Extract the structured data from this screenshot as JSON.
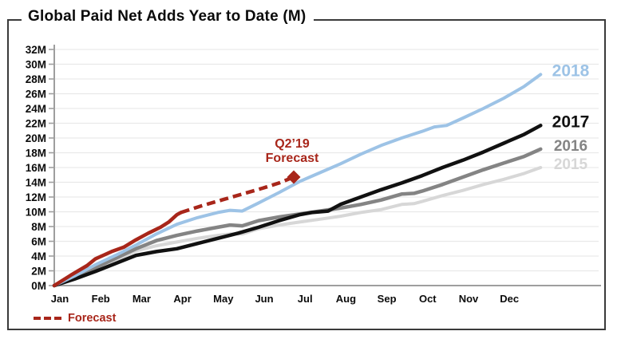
{
  "title": "Global Paid Net Adds Year to Date (M)",
  "annotation": {
    "line1": "Q2’19",
    "line2": "Forecast"
  },
  "legend": {
    "label": "Forecast"
  },
  "colors": {
    "forecast_red": "#A8261A",
    "blue_2018": "#9DC3E6",
    "black_2017": "#111111",
    "gray_2016": "#848484",
    "lightgray_2015": "#D7D7D7",
    "gridline": "#E9E9E9",
    "axis": "#9E9E9E",
    "frame_border": "#3A3A3A"
  },
  "chart_data": {
    "type": "line",
    "title": "Global Paid Net Adds Year to Date (M)",
    "xlabel": "",
    "ylabel": "",
    "x_axis": {
      "months": [
        "Jan",
        "Feb",
        "Mar",
        "Apr",
        "May",
        "Jun",
        "Jul",
        "Aug",
        "Sep",
        "Oct",
        "Nov",
        "Dec"
      ]
    },
    "y_axis": {
      "min": 0,
      "max": 32,
      "step": 2,
      "ticks": [
        "0M",
        "2M",
        "4M",
        "6M",
        "8M",
        "10M",
        "12M",
        "14M",
        "16M",
        "18M",
        "20M",
        "22M",
        "24M",
        "26M",
        "28M",
        "30M",
        "32M"
      ]
    },
    "grid": true,
    "legend_position": "bottom-left",
    "series": [
      {
        "name": "2015",
        "label": "2015",
        "color": "#D7D7D7",
        "style": "solid",
        "width": 4,
        "label_size": 19,
        "points": [
          [
            0,
            0
          ],
          [
            0.5,
            1.0
          ],
          [
            1,
            2.2
          ],
          [
            1.5,
            3.4
          ],
          [
            2,
            4.7
          ],
          [
            2.5,
            5.4
          ],
          [
            3,
            5.9
          ],
          [
            3.5,
            6.4
          ],
          [
            4,
            6.8
          ],
          [
            4.3,
            7.0
          ],
          [
            4.6,
            7.0
          ],
          [
            5,
            7.7
          ],
          [
            5.5,
            8.2
          ],
          [
            6,
            8.6
          ],
          [
            6.5,
            9.0
          ],
          [
            7,
            9.4
          ],
          [
            7.5,
            9.9
          ],
          [
            8,
            10.3
          ],
          [
            8.5,
            11.0
          ],
          [
            8.8,
            11.1
          ],
          [
            9,
            11.4
          ],
          [
            9.5,
            12.2
          ],
          [
            10,
            12.9
          ],
          [
            10.5,
            13.7
          ],
          [
            11,
            14.4
          ],
          [
            11.5,
            15.2
          ],
          [
            11.9,
            16.0
          ]
        ]
      },
      {
        "name": "2016",
        "label": "2016",
        "color": "#848484",
        "style": "solid",
        "width": 4.5,
        "label_size": 19,
        "points": [
          [
            0,
            0
          ],
          [
            0.5,
            1.1
          ],
          [
            1,
            2.4
          ],
          [
            1.5,
            3.7
          ],
          [
            2,
            5.0
          ],
          [
            2.5,
            6.1
          ],
          [
            3,
            6.8
          ],
          [
            3.5,
            7.4
          ],
          [
            4,
            7.9
          ],
          [
            4.3,
            8.2
          ],
          [
            4.6,
            8.1
          ],
          [
            5,
            8.8
          ],
          [
            5.5,
            9.3
          ],
          [
            6,
            9.7
          ],
          [
            6.5,
            10.1
          ],
          [
            7,
            10.5
          ],
          [
            7.5,
            11.0
          ],
          [
            8,
            11.6
          ],
          [
            8.5,
            12.4
          ],
          [
            8.8,
            12.5
          ],
          [
            9,
            12.8
          ],
          [
            9.5,
            13.7
          ],
          [
            10,
            14.7
          ],
          [
            10.5,
            15.7
          ],
          [
            11,
            16.6
          ],
          [
            11.5,
            17.5
          ],
          [
            11.9,
            18.5
          ]
        ]
      },
      {
        "name": "2017",
        "label": "2017",
        "color": "#111111",
        "style": "solid",
        "width": 4.5,
        "label_size": 21,
        "points": [
          [
            0,
            0
          ],
          [
            0.5,
            0.9
          ],
          [
            1,
            1.9
          ],
          [
            1.5,
            3.0
          ],
          [
            2,
            4.1
          ],
          [
            2.5,
            4.6
          ],
          [
            3,
            5.0
          ],
          [
            3.5,
            5.7
          ],
          [
            4,
            6.4
          ],
          [
            4.5,
            7.1
          ],
          [
            5,
            7.9
          ],
          [
            5.5,
            8.8
          ],
          [
            6,
            9.6
          ],
          [
            6.3,
            9.9
          ],
          [
            6.7,
            10.1
          ],
          [
            7,
            11.0
          ],
          [
            7.5,
            12.0
          ],
          [
            8,
            13.0
          ],
          [
            8.5,
            13.9
          ],
          [
            9,
            14.9
          ],
          [
            9.5,
            16.0
          ],
          [
            10,
            17.0
          ],
          [
            10.5,
            18.1
          ],
          [
            11,
            19.3
          ],
          [
            11.5,
            20.5
          ],
          [
            11.9,
            21.7
          ]
        ]
      },
      {
        "name": "2018",
        "label": "2018",
        "color": "#9DC3E6",
        "style": "solid",
        "width": 4,
        "label_size": 21,
        "points": [
          [
            0,
            0
          ],
          [
            0.5,
            1.3
          ],
          [
            1,
            2.8
          ],
          [
            1.5,
            4.1
          ],
          [
            2,
            5.5
          ],
          [
            2.5,
            7.0
          ],
          [
            3,
            8.3
          ],
          [
            3.5,
            9.2
          ],
          [
            4,
            9.9
          ],
          [
            4.3,
            10.2
          ],
          [
            4.6,
            10.1
          ],
          [
            5,
            11.2
          ],
          [
            5.5,
            12.6
          ],
          [
            6,
            14.1
          ],
          [
            6.5,
            15.3
          ],
          [
            7,
            16.5
          ],
          [
            7.5,
            17.8
          ],
          [
            8,
            19.0
          ],
          [
            8.5,
            20.0
          ],
          [
            9,
            20.9
          ],
          [
            9.3,
            21.5
          ],
          [
            9.6,
            21.7
          ],
          [
            10,
            22.7
          ],
          [
            10.5,
            24.0
          ],
          [
            11,
            25.4
          ],
          [
            11.5,
            27.0
          ],
          [
            11.9,
            28.6
          ]
        ]
      },
      {
        "name": "2019 actual (Q1)",
        "label": null,
        "color": "#A8261A",
        "style": "solid",
        "width": 4.5,
        "label_size": 0,
        "points": [
          [
            0,
            0
          ],
          [
            0.4,
            1.4
          ],
          [
            0.8,
            2.7
          ],
          [
            1,
            3.6
          ],
          [
            1.4,
            4.6
          ],
          [
            1.7,
            5.2
          ],
          [
            2,
            6.2
          ],
          [
            2.3,
            7.1
          ],
          [
            2.6,
            7.9
          ],
          [
            2.8,
            8.6
          ],
          [
            3,
            9.6
          ],
          [
            3.1,
            9.9
          ]
        ]
      },
      {
        "name": "2019 forecast",
        "label": null,
        "color": "#A8261A",
        "style": "dashed",
        "width": 4.5,
        "label_size": 0,
        "points": [
          [
            3.1,
            9.9
          ],
          [
            3.6,
            10.8
          ],
          [
            4.1,
            11.6
          ],
          [
            4.6,
            12.4
          ],
          [
            5.1,
            13.2
          ],
          [
            5.5,
            13.9
          ],
          [
            5.86,
            14.7
          ]
        ]
      }
    ],
    "marker": {
      "name": "Q2'19 Forecast",
      "x": 5.86,
      "y": 14.7,
      "shape": "diamond",
      "color": "#A8261A"
    }
  }
}
